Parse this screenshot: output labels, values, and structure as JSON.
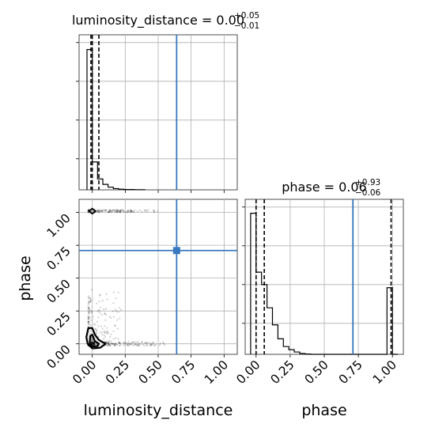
{
  "chart_data": [
    {
      "type": "histogram",
      "panel": "luminosity_distance-marginal",
      "title": {
        "text": "luminosity_distance = 0.00",
        "sup": "+0.05",
        "sub": "−0.01"
      },
      "xlim": [
        -0.1,
        1.1
      ],
      "ylim": [
        0,
        1.0
      ],
      "bins": [
        -0.04,
        0.0,
        0.04,
        0.08,
        0.12,
        0.16,
        0.2,
        0.24,
        0.28,
        0.32,
        0.36,
        0.4
      ],
      "values": [
        0.905,
        0.18,
        0.07,
        0.035,
        0.017,
        0.008,
        0.004,
        0.002,
        0.002,
        0.001,
        0.001
      ],
      "quantiles": [
        -0.01,
        0.0,
        0.05
      ],
      "truth": 0.64,
      "x_ticks": [
        0.0,
        0.25,
        0.5,
        0.75,
        1.0
      ],
      "grid": true
    },
    {
      "type": "scatter",
      "panel": "phase-vs-luminosity_distance",
      "xlabel": "luminosity_distance",
      "ylabel": "phase",
      "xlim": [
        -0.1,
        1.1
      ],
      "ylim": [
        -0.08,
        1.1
      ],
      "x_tick_labels": [
        "0.00",
        "0.25",
        "0.50",
        "0.75",
        "1.00"
      ],
      "y_tick_labels": [
        "0.00",
        "0.25",
        "0.50",
        "0.75",
        "1.00"
      ],
      "truth": {
        "x": 0.64,
        "y": 0.71
      },
      "clusters": [
        {
          "x_center": 0.0,
          "y_center": 1.01,
          "x_spread": [
            -0.03,
            0.5
          ],
          "y_spread": 0.01,
          "n": 160
        },
        {
          "x_center": 0.0,
          "y_center": 0.0,
          "x_spread": [
            -0.03,
            0.55
          ],
          "y_spread": 0.4,
          "n": 420
        }
      ],
      "contours": [
        {
          "name": "outer",
          "points": [
            [
              -0.035,
              0.0
            ],
            [
              0.0,
              -0.035
            ],
            [
              0.06,
              -0.03
            ],
            [
              0.1,
              0.0
            ],
            [
              0.05,
              0.03
            ],
            [
              0.02,
              0.07
            ],
            [
              0.0,
              0.12
            ],
            [
              -0.03,
              0.12
            ],
            [
              -0.045,
              0.05
            ]
          ]
        },
        {
          "name": "inner",
          "points": [
            [
              -0.02,
              0.0
            ],
            [
              0.0,
              -0.02
            ],
            [
              0.04,
              -0.018
            ],
            [
              0.05,
              0.0
            ],
            [
              0.02,
              0.02
            ],
            [
              0.0,
              0.07
            ],
            [
              -0.015,
              0.06
            ]
          ]
        },
        {
          "name": "top",
          "points": [
            [
              -0.025,
              1.01
            ],
            [
              0.0,
              0.99
            ],
            [
              0.025,
              1.01
            ],
            [
              0.0,
              1.03
            ]
          ]
        }
      ],
      "grid": true
    },
    {
      "type": "histogram",
      "panel": "phase-marginal",
      "title": {
        "text": "phase = 0.06",
        "sup": "+0.93",
        "sub": "−0.06"
      },
      "xlabel": "phase",
      "xlim": [
        -0.08,
        1.08
      ],
      "ylim": [
        0,
        1.0
      ],
      "x_tick_labels": [
        "0.00",
        "0.25",
        "0.50",
        "0.75",
        "1.00"
      ],
      "bins": [
        -0.04,
        0.0,
        0.04,
        0.08,
        0.12,
        0.16,
        0.2,
        0.24,
        0.28,
        0.32,
        0.36,
        0.4,
        0.44,
        0.48,
        0.52,
        0.56,
        0.6,
        0.64,
        0.68,
        0.72,
        0.76,
        0.8,
        0.84,
        0.88,
        0.92,
        0.96,
        1.0,
        1.04
      ],
      "values": [
        0.91,
        0.53,
        0.45,
        0.3,
        0.19,
        0.1,
        0.05,
        0.03,
        0.015,
        0.005,
        0.002,
        0.0,
        0.0,
        0.0,
        0.0,
        0.0,
        0.0,
        0.0,
        0.0,
        0.0,
        0.0,
        0.0,
        0.0,
        0.0,
        0.0,
        0.43,
        0.0
      ],
      "quantiles": [
        0.0,
        0.06,
        0.99
      ],
      "truth": 0.71,
      "grid": true
    }
  ]
}
